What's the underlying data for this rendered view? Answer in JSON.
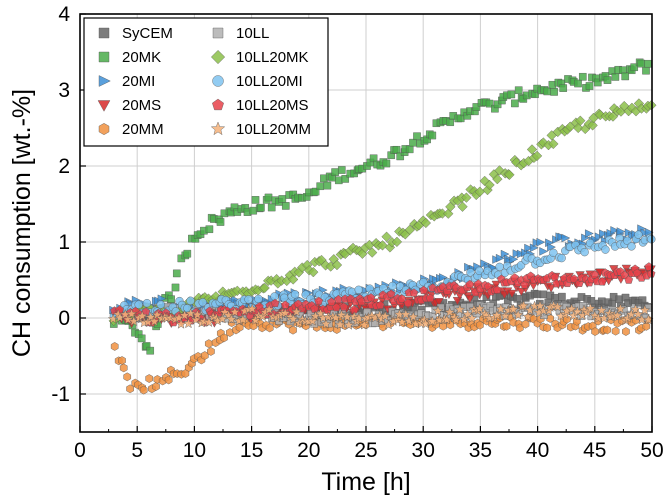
{
  "chart_data": {
    "type": "scatter",
    "title": "",
    "xlabel": "Time [h]",
    "ylabel": "CH consumption [wt.-%]",
    "xlim": [
      0,
      50
    ],
    "ylim": [
      -1.5,
      4
    ],
    "xticks": [
      0,
      5,
      10,
      15,
      20,
      25,
      30,
      35,
      40,
      45,
      50
    ],
    "yticks": [
      -1,
      0,
      1,
      2,
      3,
      4
    ],
    "grid": true,
    "legend_position": "top-left",
    "legend_columns": 2,
    "series": [
      {
        "name": "SyCEM",
        "marker": "square",
        "color": "#666666",
        "x_range": [
          4,
          50
        ],
        "points": [
          [
            4,
            0.0
          ],
          [
            10,
            0.15
          ],
          [
            15,
            0.1
          ],
          [
            20,
            0.05
          ],
          [
            25,
            0.1
          ],
          [
            30,
            0.15
          ],
          [
            35,
            0.2
          ],
          [
            40,
            0.25
          ],
          [
            45,
            0.2
          ],
          [
            50,
            0.2
          ]
        ]
      },
      {
        "name": "20MK",
        "marker": "square",
        "color": "#4aab4a",
        "x_range": [
          3,
          50
        ],
        "points": [
          [
            3,
            0.0
          ],
          [
            5,
            -0.15
          ],
          [
            6,
            -0.45
          ],
          [
            7,
            0.1
          ],
          [
            8,
            0.3
          ],
          [
            9,
            0.8
          ],
          [
            10,
            1.1
          ],
          [
            12,
            1.3
          ],
          [
            14,
            1.45
          ],
          [
            16,
            1.5
          ],
          [
            18,
            1.55
          ],
          [
            20,
            1.6
          ],
          [
            22,
            1.85
          ],
          [
            24,
            1.95
          ],
          [
            26,
            2.05
          ],
          [
            28,
            2.2
          ],
          [
            30,
            2.4
          ],
          [
            32,
            2.55
          ],
          [
            34,
            2.75
          ],
          [
            36,
            2.8
          ],
          [
            38,
            2.9
          ],
          [
            40,
            3.0
          ],
          [
            42,
            3.05
          ],
          [
            44,
            3.1
          ],
          [
            46,
            3.15
          ],
          [
            48,
            3.25
          ],
          [
            50,
            3.35
          ]
        ]
      },
      {
        "name": "20MI",
        "marker": "triangle-right",
        "color": "#3d8fd6",
        "x_range": [
          3,
          50
        ],
        "points": [
          [
            3,
            0.1
          ],
          [
            5,
            0.2
          ],
          [
            10,
            0.15
          ],
          [
            15,
            0.2
          ],
          [
            20,
            0.3
          ],
          [
            25,
            0.35
          ],
          [
            30,
            0.45
          ],
          [
            33,
            0.55
          ],
          [
            36,
            0.7
          ],
          [
            39,
            0.9
          ],
          [
            42,
            1.0
          ],
          [
            45,
            1.05
          ],
          [
            48,
            1.1
          ],
          [
            50,
            1.1
          ]
        ]
      },
      {
        "name": "20MS",
        "marker": "triangle-down",
        "color": "#d62a2a",
        "x_range": [
          3,
          50
        ],
        "points": [
          [
            3,
            0.0
          ],
          [
            6,
            0.0
          ],
          [
            10,
            0.0
          ],
          [
            15,
            0.05
          ],
          [
            20,
            0.1
          ],
          [
            25,
            0.15
          ],
          [
            30,
            0.25
          ],
          [
            35,
            0.35
          ],
          [
            40,
            0.45
          ],
          [
            45,
            0.55
          ],
          [
            48,
            0.6
          ],
          [
            50,
            0.65
          ]
        ]
      },
      {
        "name": "20MM",
        "marker": "hexagon",
        "color": "#f09040",
        "x_range": [
          3,
          50
        ],
        "points": [
          [
            3,
            -0.3
          ],
          [
            4,
            -0.8
          ],
          [
            5,
            -0.95
          ],
          [
            6,
            -0.85
          ],
          [
            7,
            -0.9
          ],
          [
            8,
            -0.75
          ],
          [
            9,
            -0.7
          ],
          [
            10,
            -0.55
          ],
          [
            11,
            -0.45
          ],
          [
            12,
            -0.3
          ],
          [
            13,
            -0.15
          ],
          [
            14,
            -0.05
          ],
          [
            16,
            -0.05
          ],
          [
            20,
            -0.1
          ],
          [
            25,
            -0.05
          ],
          [
            30,
            -0.05
          ],
          [
            35,
            -0.05
          ],
          [
            40,
            -0.05
          ],
          [
            45,
            -0.1
          ],
          [
            50,
            -0.1
          ]
        ]
      },
      {
        "name": "10LL",
        "marker": "square",
        "color": "#b0b0b0",
        "x_range": [
          4,
          50
        ],
        "points": [
          [
            4,
            0.05
          ],
          [
            10,
            0.1
          ],
          [
            15,
            0.05
          ],
          [
            20,
            0.0
          ],
          [
            25,
            0.0
          ],
          [
            30,
            0.05
          ],
          [
            35,
            0.1
          ],
          [
            40,
            0.1
          ],
          [
            45,
            0.1
          ],
          [
            50,
            0.05
          ]
        ]
      },
      {
        "name": "10LL20MK",
        "marker": "diamond",
        "color": "#8cbf4a",
        "x_range": [
          3,
          50
        ],
        "points": [
          [
            3,
            0.0
          ],
          [
            5,
            0.1
          ],
          [
            7,
            0.05
          ],
          [
            9,
            0.1
          ],
          [
            11,
            0.25
          ],
          [
            13,
            0.3
          ],
          [
            15,
            0.4
          ],
          [
            17,
            0.5
          ],
          [
            19,
            0.6
          ],
          [
            21,
            0.7
          ],
          [
            23,
            0.8
          ],
          [
            25,
            0.9
          ],
          [
            27,
            1.0
          ],
          [
            29,
            1.15
          ],
          [
            31,
            1.3
          ],
          [
            33,
            1.5
          ],
          [
            35,
            1.7
          ],
          [
            37,
            1.9
          ],
          [
            39,
            2.1
          ],
          [
            41,
            2.3
          ],
          [
            43,
            2.5
          ],
          [
            45,
            2.6
          ],
          [
            47,
            2.7
          ],
          [
            50,
            2.8
          ]
        ]
      },
      {
        "name": "10LL20MI",
        "marker": "circle",
        "color": "#7fc3f0",
        "x_range": [
          3,
          50
        ],
        "points": [
          [
            3,
            0.1
          ],
          [
            6,
            0.15
          ],
          [
            10,
            0.15
          ],
          [
            15,
            0.2
          ],
          [
            20,
            0.25
          ],
          [
            25,
            0.3
          ],
          [
            30,
            0.4
          ],
          [
            33,
            0.5
          ],
          [
            36,
            0.6
          ],
          [
            39,
            0.75
          ],
          [
            42,
            0.85
          ],
          [
            45,
            0.95
          ],
          [
            48,
            1.0
          ],
          [
            50,
            1.05
          ]
        ]
      },
      {
        "name": "10LL20MS",
        "marker": "pentagon",
        "color": "#e8424a",
        "x_range": [
          3,
          50
        ],
        "points": [
          [
            3,
            0.05
          ],
          [
            6,
            0.0
          ],
          [
            10,
            0.0
          ],
          [
            15,
            0.1
          ],
          [
            20,
            0.15
          ],
          [
            25,
            0.2
          ],
          [
            30,
            0.3
          ],
          [
            35,
            0.4
          ],
          [
            40,
            0.5
          ],
          [
            45,
            0.55
          ],
          [
            50,
            0.6
          ]
        ]
      },
      {
        "name": "10LL20MM",
        "marker": "star",
        "color": "#f4b27a",
        "x_range": [
          3,
          50
        ],
        "points": [
          [
            3,
            0.0
          ],
          [
            6,
            -0.05
          ],
          [
            10,
            0.0
          ],
          [
            15,
            0.05
          ],
          [
            20,
            0.0
          ],
          [
            25,
            -0.05
          ],
          [
            30,
            0.0
          ],
          [
            35,
            0.05
          ],
          [
            40,
            0.1
          ],
          [
            45,
            0.05
          ],
          [
            50,
            0.05
          ]
        ]
      }
    ]
  }
}
